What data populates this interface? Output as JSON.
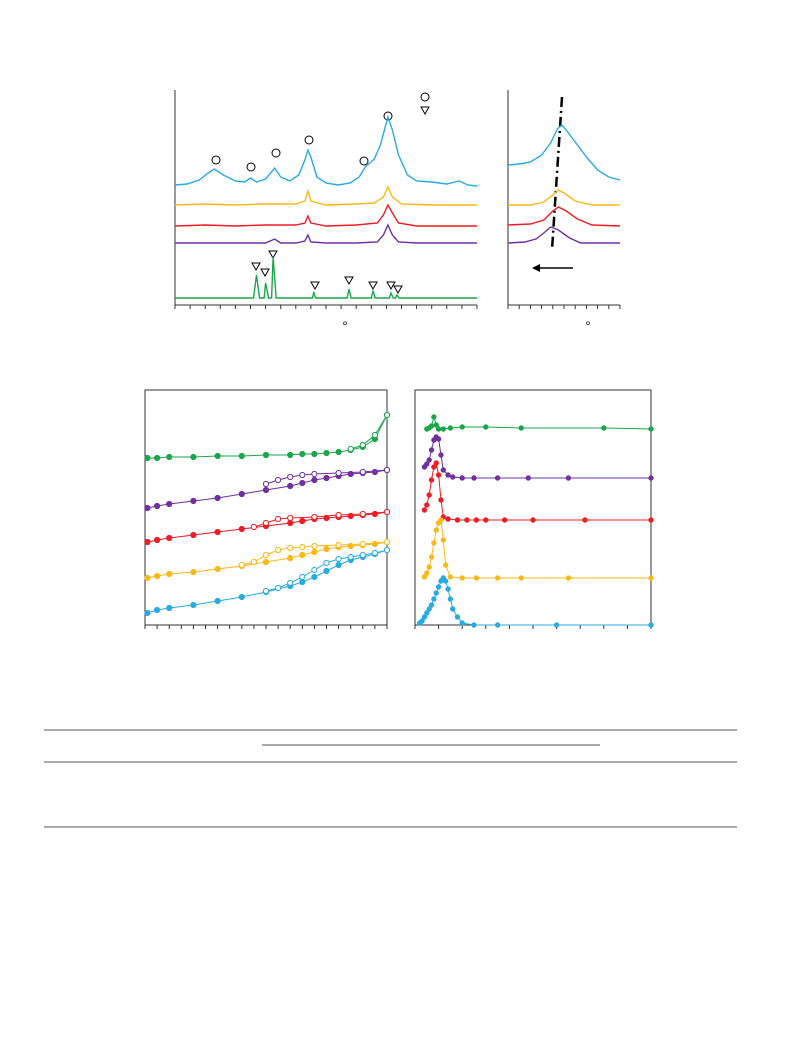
{
  "chart_data": [
    {
      "type": "line",
      "xlabel": "°",
      "xlim": [
        0,
        100
      ],
      "ylim": [
        0,
        215
      ],
      "xticks": [
        0,
        5,
        10,
        15,
        20,
        25,
        30,
        35,
        40,
        45,
        50,
        55,
        60,
        65,
        70,
        75,
        80,
        85,
        90,
        95,
        100
      ],
      "series": [
        {
          "color": "#29abe2",
          "x": [
            0,
            4,
            8,
            11,
            13,
            16,
            20,
            23,
            25,
            27,
            30,
            33,
            35,
            38,
            41,
            43,
            44,
            45,
            47,
            50,
            54,
            58,
            61,
            63,
            66,
            68,
            70.5,
            72,
            74,
            77,
            80,
            85,
            90,
            94,
            97,
            100
          ],
          "values": [
            120,
            121,
            125,
            132,
            136,
            130,
            124,
            123,
            127,
            123,
            126,
            137,
            128,
            124,
            130,
            145,
            155,
            148,
            128,
            122,
            120,
            122,
            128,
            138,
            146,
            160,
            188,
            175,
            150,
            130,
            124,
            123,
            121,
            124,
            120,
            119
          ]
        },
        {
          "color": "#fbb917",
          "x": [
            0,
            10,
            20,
            30,
            40,
            43,
            44,
            45,
            50,
            60,
            66,
            69,
            70.5,
            72,
            75,
            85,
            100
          ],
          "values": [
            100,
            101,
            100,
            101,
            101,
            104,
            114,
            104,
            100,
            101,
            102,
            108,
            118,
            108,
            101,
            100,
            100
          ]
        },
        {
          "color": "#ee1c25",
          "x": [
            0,
            10,
            20,
            30,
            40,
            43,
            44,
            45,
            50,
            60,
            67,
            69,
            70.5,
            72,
            74,
            80,
            100
          ],
          "values": [
            79,
            80,
            79,
            80,
            80,
            82,
            89,
            82,
            79,
            80,
            82,
            90,
            100,
            92,
            82,
            79,
            79
          ]
        },
        {
          "color": "#7030a0",
          "x": [
            0,
            10,
            20,
            30,
            33,
            35,
            40,
            43,
            44,
            45,
            50,
            60,
            67,
            69,
            70.5,
            72,
            74,
            80,
            100
          ],
          "values": [
            62,
            62,
            62,
            62,
            66,
            62,
            62,
            64,
            70,
            63,
            62,
            62,
            63,
            70,
            80,
            70,
            63,
            62,
            62
          ]
        },
        {
          "color": "#1aa64a",
          "x": [
            0,
            26,
            27,
            28,
            29.5,
            30,
            31,
            32,
            32.5,
            33.5,
            45.5,
            46,
            46.5,
            57,
            57.6,
            58.3,
            65,
            65.6,
            66.3,
            71,
            71.5,
            72.3,
            73,
            73.5,
            74.2,
            100
          ],
          "values": [
            7,
            7,
            30,
            7,
            7,
            22,
            7,
            7,
            48,
            7,
            7,
            13,
            7,
            7,
            16,
            7,
            7,
            14,
            7,
            7,
            12,
            7,
            7,
            10,
            7,
            7
          ]
        }
      ]
    },
    {
      "type": "line",
      "xlabel": "°",
      "xlim": [
        0,
        100
      ],
      "ylim": [
        0,
        215
      ],
      "xticks": [
        0,
        10,
        20,
        30,
        40,
        50,
        60,
        70,
        80,
        90,
        100
      ],
      "series": [
        {
          "color": "#29abe2",
          "x": [
            0,
            10,
            20,
            30,
            38,
            44,
            48,
            52,
            60,
            70,
            80,
            90,
            100
          ],
          "values": [
            140,
            141,
            143,
            150,
            162,
            176,
            180,
            175,
            163,
            148,
            135,
            128,
            125
          ]
        },
        {
          "color": "#fbb917",
          "x": [
            0,
            20,
            32,
            40,
            45,
            50,
            60,
            75,
            100
          ],
          "values": [
            100,
            100,
            103,
            110,
            115,
            112,
            104,
            100,
            100
          ]
        },
        {
          "color": "#ee1c25",
          "x": [
            0,
            20,
            32,
            40,
            45,
            52,
            62,
            75,
            100
          ],
          "values": [
            80,
            81,
            85,
            94,
            98,
            94,
            86,
            80,
            79
          ]
        },
        {
          "color": "#7030a0",
          "x": [
            0,
            15,
            25,
            32,
            38,
            45,
            55,
            65,
            100
          ],
          "values": [
            62,
            63,
            66,
            72,
            78,
            75,
            67,
            62,
            62
          ]
        }
      ]
    },
    {
      "type": "line",
      "xlim": [
        0,
        1
      ],
      "ylim": [
        0,
        235
      ],
      "xticks": [
        0,
        0.05,
        0.1,
        0.15,
        0.2,
        0.25,
        0.3,
        0.35,
        0.4,
        0.45,
        0.5,
        0.55,
        0.6,
        0.65,
        0.7,
        0.75,
        0.8,
        0.85,
        0.9,
        0.95,
        1
      ],
      "series": [
        {
          "color": "#29abe2",
          "marker": "filled",
          "x": [
            0.01,
            0.05,
            0.1,
            0.2,
            0.3,
            0.4,
            0.5,
            0.6,
            0.65,
            0.7,
            0.75,
            0.8,
            0.85,
            0.9,
            0.95,
            1.0
          ],
          "values": [
            12,
            15,
            17,
            20,
            24,
            28,
            33,
            39,
            43,
            48,
            54,
            60,
            65,
            68,
            71,
            75
          ]
        },
        {
          "color": "#29abe2",
          "marker": "open",
          "x": [
            0.5,
            0.55,
            0.6,
            0.65,
            0.7,
            0.75,
            0.8,
            0.85,
            0.9,
            0.95,
            1.0
          ],
          "values": [
            34,
            37,
            42,
            48,
            55,
            62,
            66,
            68,
            70,
            72,
            75
          ]
        },
        {
          "color": "#fbb917",
          "marker": "filled",
          "x": [
            0.01,
            0.05,
            0.1,
            0.2,
            0.3,
            0.4,
            0.5,
            0.6,
            0.65,
            0.7,
            0.75,
            0.8,
            0.85,
            0.9,
            0.95,
            1.0
          ],
          "values": [
            47,
            49,
            51,
            53,
            56,
            59,
            63,
            67,
            70,
            73,
            76,
            78,
            79,
            80,
            81,
            83
          ]
        },
        {
          "color": "#fbb917",
          "marker": "open",
          "x": [
            0.4,
            0.45,
            0.5,
            0.55,
            0.6,
            0.65,
            0.7,
            0.8,
            0.9,
            1.0
          ],
          "values": [
            60,
            63,
            70,
            75,
            77,
            78,
            79,
            80,
            81,
            83
          ]
        },
        {
          "color": "#ee1c25",
          "marker": "filled",
          "x": [
            0.01,
            0.05,
            0.1,
            0.2,
            0.3,
            0.4,
            0.5,
            0.6,
            0.65,
            0.7,
            0.75,
            0.8,
            0.85,
            0.9,
            0.95,
            1.0
          ],
          "values": [
            83,
            85,
            87,
            90,
            93,
            96,
            99,
            102,
            104,
            106,
            107,
            108,
            109,
            110,
            111,
            113
          ]
        },
        {
          "color": "#ee1c25",
          "marker": "open",
          "x": [
            0.45,
            0.5,
            0.55,
            0.6,
            0.7,
            0.8,
            0.9,
            1.0
          ],
          "values": [
            98,
            102,
            106,
            107,
            108,
            110,
            111,
            113
          ]
        },
        {
          "color": "#7030a0",
          "marker": "filled",
          "x": [
            0.01,
            0.05,
            0.1,
            0.2,
            0.3,
            0.4,
            0.5,
            0.6,
            0.65,
            0.7,
            0.75,
            0.8,
            0.85,
            0.9,
            0.95,
            1.0
          ],
          "values": [
            117,
            119,
            121,
            124,
            127,
            131,
            135,
            139,
            142,
            145,
            147,
            149,
            151,
            152,
            153,
            155
          ]
        },
        {
          "color": "#7030a0",
          "marker": "open",
          "x": [
            0.5,
            0.55,
            0.6,
            0.65,
            0.7,
            0.8,
            0.9,
            1.0
          ],
          "values": [
            141,
            145,
            148,
            150,
            151,
            152,
            153,
            155
          ]
        },
        {
          "color": "#1aa64a",
          "marker": "filled",
          "x": [
            0.01,
            0.05,
            0.1,
            0.2,
            0.3,
            0.4,
            0.5,
            0.6,
            0.65,
            0.7,
            0.75,
            0.8,
            0.85,
            0.9,
            0.95,
            1.0
          ],
          "values": [
            167,
            167,
            168,
            168,
            169,
            169,
            170,
            170,
            171,
            171,
            172,
            173,
            175,
            178,
            186,
            210
          ]
        },
        {
          "color": "#1aa64a",
          "marker": "open",
          "x": [
            0.85,
            0.9,
            0.95,
            1.0
          ],
          "values": [
            176,
            180,
            190,
            210
          ]
        }
      ]
    },
    {
      "type": "line",
      "xlim": [
        0,
        100
      ],
      "ylim": [
        0,
        235
      ],
      "xticks": [
        0,
        10,
        20,
        30,
        40,
        50,
        60,
        70,
        80,
        90,
        100
      ],
      "series": [
        {
          "color": "#1aa64a",
          "marker": "filled",
          "x": [
            5,
            6,
            7,
            8,
            9,
            10,
            12,
            15,
            20,
            30,
            45,
            80,
            100
          ],
          "values": [
            196,
            197,
            199,
            208,
            200,
            196,
            196,
            197,
            198,
            198,
            197,
            197,
            196
          ]
        },
        {
          "color": "#7030a0",
          "marker": "filled",
          "x": [
            4,
            5,
            6,
            7,
            8,
            9,
            10,
            11,
            12,
            14,
            16,
            20,
            25,
            35,
            48,
            65,
            100
          ],
          "values": [
            158,
            161,
            165,
            175,
            185,
            188,
            186,
            170,
            155,
            150,
            148,
            147,
            147,
            147,
            147,
            147,
            147
          ]
        },
        {
          "color": "#ee1c25",
          "marker": "filled",
          "x": [
            4,
            5,
            6,
            7,
            8,
            9,
            10,
            11,
            12,
            14,
            18,
            22,
            26,
            30,
            38,
            50,
            72,
            100
          ],
          "values": [
            115,
            120,
            130,
            145,
            158,
            162,
            150,
            125,
            108,
            106,
            105,
            105,
            105,
            105,
            105,
            105,
            105,
            105
          ]
        },
        {
          "color": "#fbb917",
          "marker": "filled",
          "x": [
            4,
            5,
            6,
            7,
            8,
            9,
            10,
            11,
            12,
            13,
            15,
            20,
            26,
            35,
            45,
            65,
            100
          ],
          "values": [
            48,
            52,
            58,
            68,
            82,
            95,
            102,
            105,
            85,
            60,
            48,
            47,
            47,
            47,
            47,
            47,
            47
          ]
        },
        {
          "color": "#29abe2",
          "marker": "filled",
          "x": [
            2,
            3,
            4,
            5,
            6,
            7,
            8,
            9,
            10,
            11,
            12,
            13,
            14,
            15,
            16,
            18,
            20,
            25,
            35,
            60,
            100
          ],
          "values": [
            2,
            4,
            8,
            12,
            16,
            20,
            26,
            32,
            38,
            44,
            47,
            44,
            36,
            26,
            16,
            8,
            2,
            0,
            0,
            0,
            0
          ]
        }
      ]
    }
  ]
}
